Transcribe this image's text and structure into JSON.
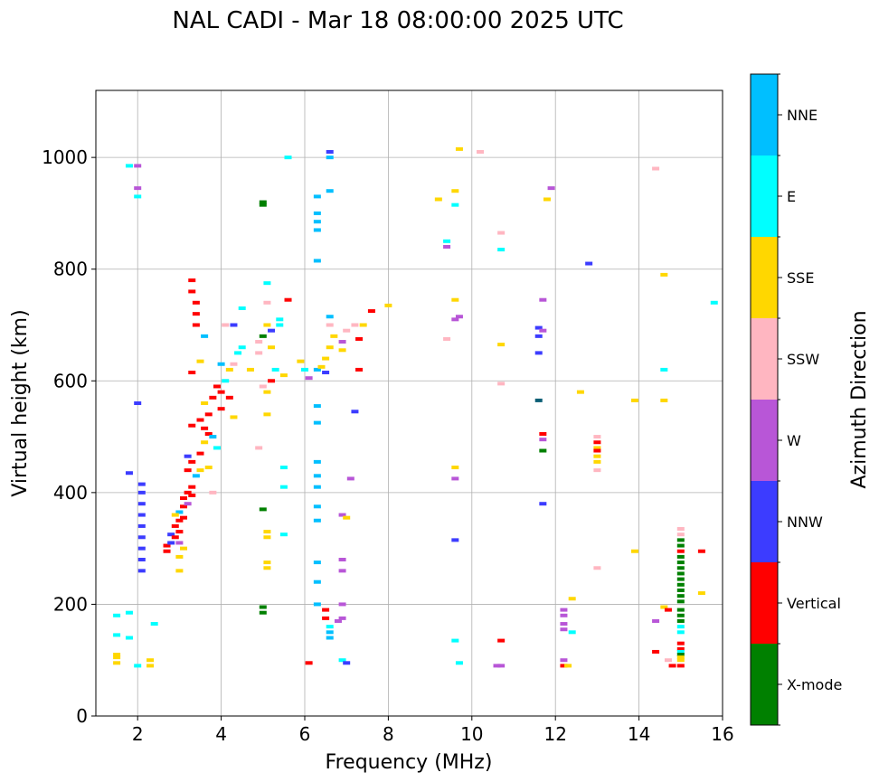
{
  "chart_data": {
    "type": "scatter",
    "title": "NAL CADI - Mar 18 08:00:00 2025 UTC",
    "xlabel": "Frequency (MHz)",
    "ylabel": "Virtual height (km)",
    "xlim": [
      1,
      16
    ],
    "ylim": [
      0,
      1120
    ],
    "xticks": [
      2,
      4,
      6,
      8,
      10,
      12,
      14,
      16
    ],
    "yticks": [
      0,
      200,
      400,
      600,
      800,
      1000
    ],
    "grid": true,
    "colorbar": {
      "label": "Azimuth Direction",
      "categories": [
        {
          "name": "X-mode",
          "color": "#008000"
        },
        {
          "name": "Vertical",
          "color": "#ff0000"
        },
        {
          "name": "NNW",
          "color": "#3c3cff"
        },
        {
          "name": "W",
          "color": "#b856d7"
        },
        {
          "name": "SSW",
          "color": "#ffb6c1"
        },
        {
          "name": "SSE",
          "color": "#ffd700"
        },
        {
          "name": "E",
          "color": "#00ffff"
        },
        {
          "name": "NNE",
          "color": "#00bfff"
        }
      ]
    },
    "points": [
      [
        1.5,
        95,
        "SSE"
      ],
      [
        1.5,
        105,
        "SSE"
      ],
      [
        1.5,
        110,
        "SSE"
      ],
      [
        1.5,
        145,
        "E"
      ],
      [
        1.5,
        180,
        "E"
      ],
      [
        1.8,
        185,
        "E"
      ],
      [
        1.8,
        140,
        "E"
      ],
      [
        1.8,
        985,
        "E"
      ],
      [
        2.0,
        985,
        "W"
      ],
      [
        2.0,
        945,
        "W"
      ],
      [
        2.0,
        930,
        "E"
      ],
      [
        2.0,
        560,
        "NNW"
      ],
      [
        2.0,
        90,
        "E"
      ],
      [
        2.3,
        90,
        "SSE"
      ],
      [
        2.3,
        100,
        "SSE"
      ],
      [
        2.4,
        165,
        "E"
      ],
      [
        2.1,
        260,
        "NNW"
      ],
      [
        2.1,
        280,
        "NNW"
      ],
      [
        2.1,
        300,
        "NNW"
      ],
      [
        2.1,
        320,
        "NNW"
      ],
      [
        2.1,
        340,
        "NNW"
      ],
      [
        2.1,
        360,
        "NNW"
      ],
      [
        2.1,
        380,
        "NNW"
      ],
      [
        2.1,
        400,
        "NNW"
      ],
      [
        2.1,
        415,
        "NNW"
      ],
      [
        1.8,
        435,
        "NNW"
      ],
      [
        2.7,
        295,
        "Vertical"
      ],
      [
        2.7,
        305,
        "Vertical"
      ],
      [
        2.8,
        310,
        "NNW"
      ],
      [
        2.8,
        325,
        "NNW"
      ],
      [
        2.9,
        320,
        "Vertical"
      ],
      [
        2.9,
        340,
        "Vertical"
      ],
      [
        3.0,
        330,
        "Vertical"
      ],
      [
        3.0,
        350,
        "Vertical"
      ],
      [
        3.0,
        365,
        "NNE"
      ],
      [
        3.1,
        355,
        "Vertical"
      ],
      [
        3.1,
        375,
        "Vertical"
      ],
      [
        3.1,
        390,
        "Vertical"
      ],
      [
        3.2,
        400,
        "Vertical"
      ],
      [
        3.2,
        380,
        "W"
      ],
      [
        3.3,
        410,
        "Vertical"
      ],
      [
        3.3,
        395,
        "Vertical"
      ],
      [
        3.0,
        310,
        "W"
      ],
      [
        3.1,
        300,
        "SSE"
      ],
      [
        3.0,
        285,
        "SSE"
      ],
      [
        3.0,
        260,
        "SSE"
      ],
      [
        2.9,
        360,
        "SSE"
      ],
      [
        3.2,
        440,
        "Vertical"
      ],
      [
        3.3,
        455,
        "Vertical"
      ],
      [
        3.4,
        430,
        "NNE"
      ],
      [
        3.2,
        465,
        "NNW"
      ],
      [
        3.5,
        470,
        "Vertical"
      ],
      [
        3.6,
        490,
        "SSE"
      ],
      [
        3.6,
        515,
        "Vertical"
      ],
      [
        3.7,
        505,
        "Vertical"
      ],
      [
        3.8,
        500,
        "NNE"
      ],
      [
        3.9,
        480,
        "E"
      ],
      [
        3.5,
        440,
        "SSE"
      ],
      [
        3.7,
        445,
        "SSE"
      ],
      [
        3.8,
        400,
        "SSW"
      ],
      [
        3.3,
        520,
        "Vertical"
      ],
      [
        3.5,
        530,
        "Vertical"
      ],
      [
        3.7,
        540,
        "Vertical"
      ],
      [
        3.6,
        560,
        "SSE"
      ],
      [
        3.8,
        570,
        "Vertical"
      ],
      [
        4.0,
        580,
        "Vertical"
      ],
      [
        4.1,
        600,
        "E"
      ],
      [
        4.2,
        620,
        "SSE"
      ],
      [
        4.3,
        630,
        "SSW"
      ],
      [
        4.4,
        650,
        "E"
      ],
      [
        4.5,
        660,
        "E"
      ],
      [
        3.3,
        615,
        "Vertical"
      ],
      [
        3.5,
        635,
        "SSE"
      ],
      [
        3.9,
        590,
        "Vertical"
      ],
      [
        3.4,
        700,
        "Vertical"
      ],
      [
        3.4,
        720,
        "Vertical"
      ],
      [
        3.4,
        740,
        "Vertical"
      ],
      [
        3.3,
        760,
        "Vertical"
      ],
      [
        3.3,
        780,
        "Vertical"
      ],
      [
        3.6,
        680,
        "NNE"
      ],
      [
        4.0,
        630,
        "NNE"
      ],
      [
        4.2,
        570,
        "Vertical"
      ],
      [
        4.3,
        535,
        "SSE"
      ],
      [
        4.0,
        550,
        "Vertical"
      ],
      [
        4.1,
        700,
        "SSW"
      ],
      [
        4.3,
        700,
        "NNW"
      ],
      [
        4.5,
        730,
        "E"
      ],
      [
        4.7,
        620,
        "SSE"
      ],
      [
        4.9,
        650,
        "SSW"
      ],
      [
        4.9,
        670,
        "SSW"
      ],
      [
        5.0,
        680,
        "X-mode"
      ],
      [
        5.1,
        700,
        "SSE"
      ],
      [
        5.1,
        740,
        "SSW"
      ],
      [
        5.2,
        690,
        "NNW"
      ],
      [
        5.4,
        700,
        "E"
      ],
      [
        5.4,
        710,
        "E"
      ],
      [
        5.2,
        660,
        "SSE"
      ],
      [
        5.3,
        620,
        "E"
      ],
      [
        5.5,
        610,
        "SSE"
      ],
      [
        5.2,
        600,
        "Vertical"
      ],
      [
        5.0,
        590,
        "SSW"
      ],
      [
        5.1,
        580,
        "SSE"
      ],
      [
        5.1,
        540,
        "SSE"
      ],
      [
        4.9,
        480,
        "SSW"
      ],
      [
        5.5,
        445,
        "E"
      ],
      [
        5.5,
        410,
        "E"
      ],
      [
        5.1,
        775,
        "E"
      ],
      [
        5.6,
        745,
        "Vertical"
      ],
      [
        5.0,
        920,
        "X-mode"
      ],
      [
        5.0,
        915,
        "X-mode"
      ],
      [
        5.6,
        1000,
        "E"
      ],
      [
        5.0,
        370,
        "X-mode"
      ],
      [
        5.1,
        330,
        "SSE"
      ],
      [
        5.1,
        320,
        "SSE"
      ],
      [
        5.1,
        275,
        "SSE"
      ],
      [
        5.1,
        265,
        "SSE"
      ],
      [
        5.5,
        325,
        "E"
      ],
      [
        5.0,
        195,
        "X-mode"
      ],
      [
        5.0,
        185,
        "X-mode"
      ],
      [
        6.1,
        95,
        "Vertical"
      ],
      [
        6.3,
        200,
        "NNE"
      ],
      [
        6.3,
        240,
        "NNE"
      ],
      [
        6.3,
        275,
        "NNE"
      ],
      [
        6.3,
        350,
        "NNE"
      ],
      [
        6.3,
        375,
        "NNE"
      ],
      [
        6.3,
        410,
        "NNE"
      ],
      [
        6.3,
        430,
        "NNE"
      ],
      [
        6.3,
        455,
        "NNE"
      ],
      [
        6.3,
        525,
        "NNE"
      ],
      [
        6.3,
        555,
        "NNE"
      ],
      [
        6.1,
        605,
        "W"
      ],
      [
        6.3,
        620,
        "NNE"
      ],
      [
        6.4,
        625,
        "SSE"
      ],
      [
        6.5,
        640,
        "SSE"
      ],
      [
        6.6,
        660,
        "SSE"
      ],
      [
        6.7,
        680,
        "SSE"
      ],
      [
        6.6,
        700,
        "SSW"
      ],
      [
        6.6,
        715,
        "NNE"
      ],
      [
        6.9,
        670,
        "W"
      ],
      [
        6.9,
        655,
        "SSE"
      ],
      [
        6.5,
        615,
        "NNW"
      ],
      [
        6.3,
        815,
        "NNE"
      ],
      [
        6.3,
        870,
        "NNE"
      ],
      [
        6.3,
        885,
        "NNE"
      ],
      [
        6.3,
        900,
        "NNE"
      ],
      [
        6.3,
        930,
        "NNE"
      ],
      [
        6.6,
        940,
        "NNE"
      ],
      [
        6.6,
        1000,
        "NNE"
      ],
      [
        6.6,
        1010,
        "NNW"
      ],
      [
        6.0,
        620,
        "E"
      ],
      [
        5.9,
        635,
        "SSE"
      ],
      [
        6.5,
        190,
        "Vertical"
      ],
      [
        6.5,
        175,
        "Vertical"
      ],
      [
        6.6,
        150,
        "NNE"
      ],
      [
        6.6,
        140,
        "NNE"
      ],
      [
        6.6,
        160,
        "E"
      ],
      [
        6.8,
        170,
        "W"
      ],
      [
        6.9,
        175,
        "W"
      ],
      [
        6.9,
        200,
        "W"
      ],
      [
        6.9,
        260,
        "W"
      ],
      [
        6.9,
        280,
        "W"
      ],
      [
        6.9,
        360,
        "W"
      ],
      [
        7.0,
        355,
        "SSE"
      ],
      [
        7.1,
        425,
        "W"
      ],
      [
        6.9,
        100,
        "E"
      ],
      [
        7.0,
        95,
        "NNW"
      ],
      [
        7.2,
        545,
        "NNW"
      ],
      [
        7.3,
        620,
        "Vertical"
      ],
      [
        7.3,
        675,
        "Vertical"
      ],
      [
        7.4,
        700,
        "SSE"
      ],
      [
        7.2,
        700,
        "SSW"
      ],
      [
        7.6,
        725,
        "Vertical"
      ],
      [
        8.0,
        735,
        "SSE"
      ],
      [
        7.0,
        690,
        "SSW"
      ],
      [
        9.2,
        925,
        "SSE"
      ],
      [
        9.4,
        675,
        "SSW"
      ],
      [
        9.4,
        850,
        "E"
      ],
      [
        9.4,
        840,
        "W"
      ],
      [
        9.6,
        940,
        "SSE"
      ],
      [
        9.6,
        915,
        "E"
      ],
      [
        9.6,
        745,
        "SSE"
      ],
      [
        9.7,
        715,
        "W"
      ],
      [
        9.6,
        710,
        "W"
      ],
      [
        9.7,
        1015,
        "SSE"
      ],
      [
        10.2,
        1010,
        "SSW"
      ],
      [
        9.6,
        445,
        "SSE"
      ],
      [
        9.6,
        425,
        "W"
      ],
      [
        9.6,
        315,
        "NNW"
      ],
      [
        9.6,
        135,
        "E"
      ],
      [
        9.7,
        95,
        "E"
      ],
      [
        10.7,
        865,
        "SSW"
      ],
      [
        10.7,
        835,
        "E"
      ],
      [
        10.7,
        665,
        "SSE"
      ],
      [
        10.7,
        595,
        "SSW"
      ],
      [
        10.6,
        90,
        "W"
      ],
      [
        10.7,
        90,
        "W"
      ],
      [
        10.7,
        135,
        "Vertical"
      ],
      [
        11.6,
        695,
        "NNW"
      ],
      [
        11.6,
        680,
        "NNW"
      ],
      [
        11.6,
        650,
        "NNW"
      ],
      [
        11.7,
        690,
        "W"
      ],
      [
        11.7,
        745,
        "W"
      ],
      [
        11.9,
        945,
        "W"
      ],
      [
        11.8,
        925,
        "SSE"
      ],
      [
        11.6,
        565,
        "Teal"
      ],
      [
        11.7,
        505,
        "Vertical"
      ],
      [
        11.7,
        495,
        "W"
      ],
      [
        11.7,
        475,
        "X-mode"
      ],
      [
        11.7,
        380,
        "NNW"
      ],
      [
        12.2,
        190,
        "W"
      ],
      [
        12.2,
        180,
        "W"
      ],
      [
        12.2,
        165,
        "W"
      ],
      [
        12.2,
        155,
        "W"
      ],
      [
        12.4,
        150,
        "E"
      ],
      [
        12.4,
        210,
        "SSE"
      ],
      [
        12.2,
        100,
        "W"
      ],
      [
        12.2,
        90,
        "Vertical"
      ],
      [
        12.3,
        90,
        "SSE"
      ],
      [
        12.6,
        580,
        "SSE"
      ],
      [
        12.8,
        810,
        "NNW"
      ],
      [
        13.0,
        500,
        "SSW"
      ],
      [
        13.0,
        490,
        "Vertical"
      ],
      [
        13.0,
        480,
        "SSE"
      ],
      [
        13.0,
        475,
        "Vertical"
      ],
      [
        13.0,
        465,
        "SSE"
      ],
      [
        13.0,
        455,
        "SSE"
      ],
      [
        13.0,
        440,
        "SSW"
      ],
      [
        13.0,
        265,
        "SSW"
      ],
      [
        13.9,
        565,
        "SSE"
      ],
      [
        13.9,
        295,
        "SSE"
      ],
      [
        14.4,
        980,
        "SSW"
      ],
      [
        14.6,
        790,
        "SSE"
      ],
      [
        14.6,
        620,
        "E"
      ],
      [
        14.6,
        565,
        "SSE"
      ],
      [
        14.4,
        170,
        "W"
      ],
      [
        14.4,
        115,
        "Vertical"
      ],
      [
        14.6,
        195,
        "SSE"
      ],
      [
        14.7,
        190,
        "Vertical"
      ],
      [
        14.7,
        100,
        "SSW"
      ],
      [
        14.8,
        90,
        "Vertical"
      ],
      [
        15.0,
        335,
        "SSW"
      ],
      [
        15.0,
        325,
        "SSW"
      ],
      [
        15.0,
        315,
        "X-mode"
      ],
      [
        15.0,
        305,
        "X-mode"
      ],
      [
        15.0,
        295,
        "Vertical"
      ],
      [
        15.0,
        285,
        "X-mode"
      ],
      [
        15.0,
        275,
        "X-mode"
      ],
      [
        15.0,
        265,
        "X-mode"
      ],
      [
        15.0,
        255,
        "X-mode"
      ],
      [
        15.0,
        245,
        "X-mode"
      ],
      [
        15.0,
        235,
        "X-mode"
      ],
      [
        15.0,
        225,
        "X-mode"
      ],
      [
        15.0,
        215,
        "X-mode"
      ],
      [
        15.0,
        205,
        "X-mode"
      ],
      [
        15.0,
        190,
        "X-mode"
      ],
      [
        15.0,
        180,
        "X-mode"
      ],
      [
        15.0,
        170,
        "X-mode"
      ],
      [
        15.0,
        160,
        "E"
      ],
      [
        15.0,
        150,
        "E"
      ],
      [
        15.0,
        130,
        "Vertical"
      ],
      [
        15.0,
        120,
        "Vertical"
      ],
      [
        15.0,
        115,
        "E"
      ],
      [
        15.0,
        110,
        "X-mode"
      ],
      [
        15.0,
        105,
        "SSE"
      ],
      [
        15.0,
        100,
        "SSE"
      ],
      [
        15.0,
        90,
        "Vertical"
      ],
      [
        15.5,
        295,
        "Vertical"
      ],
      [
        15.5,
        220,
        "SSE"
      ],
      [
        15.8,
        740,
        "E"
      ]
    ]
  }
}
